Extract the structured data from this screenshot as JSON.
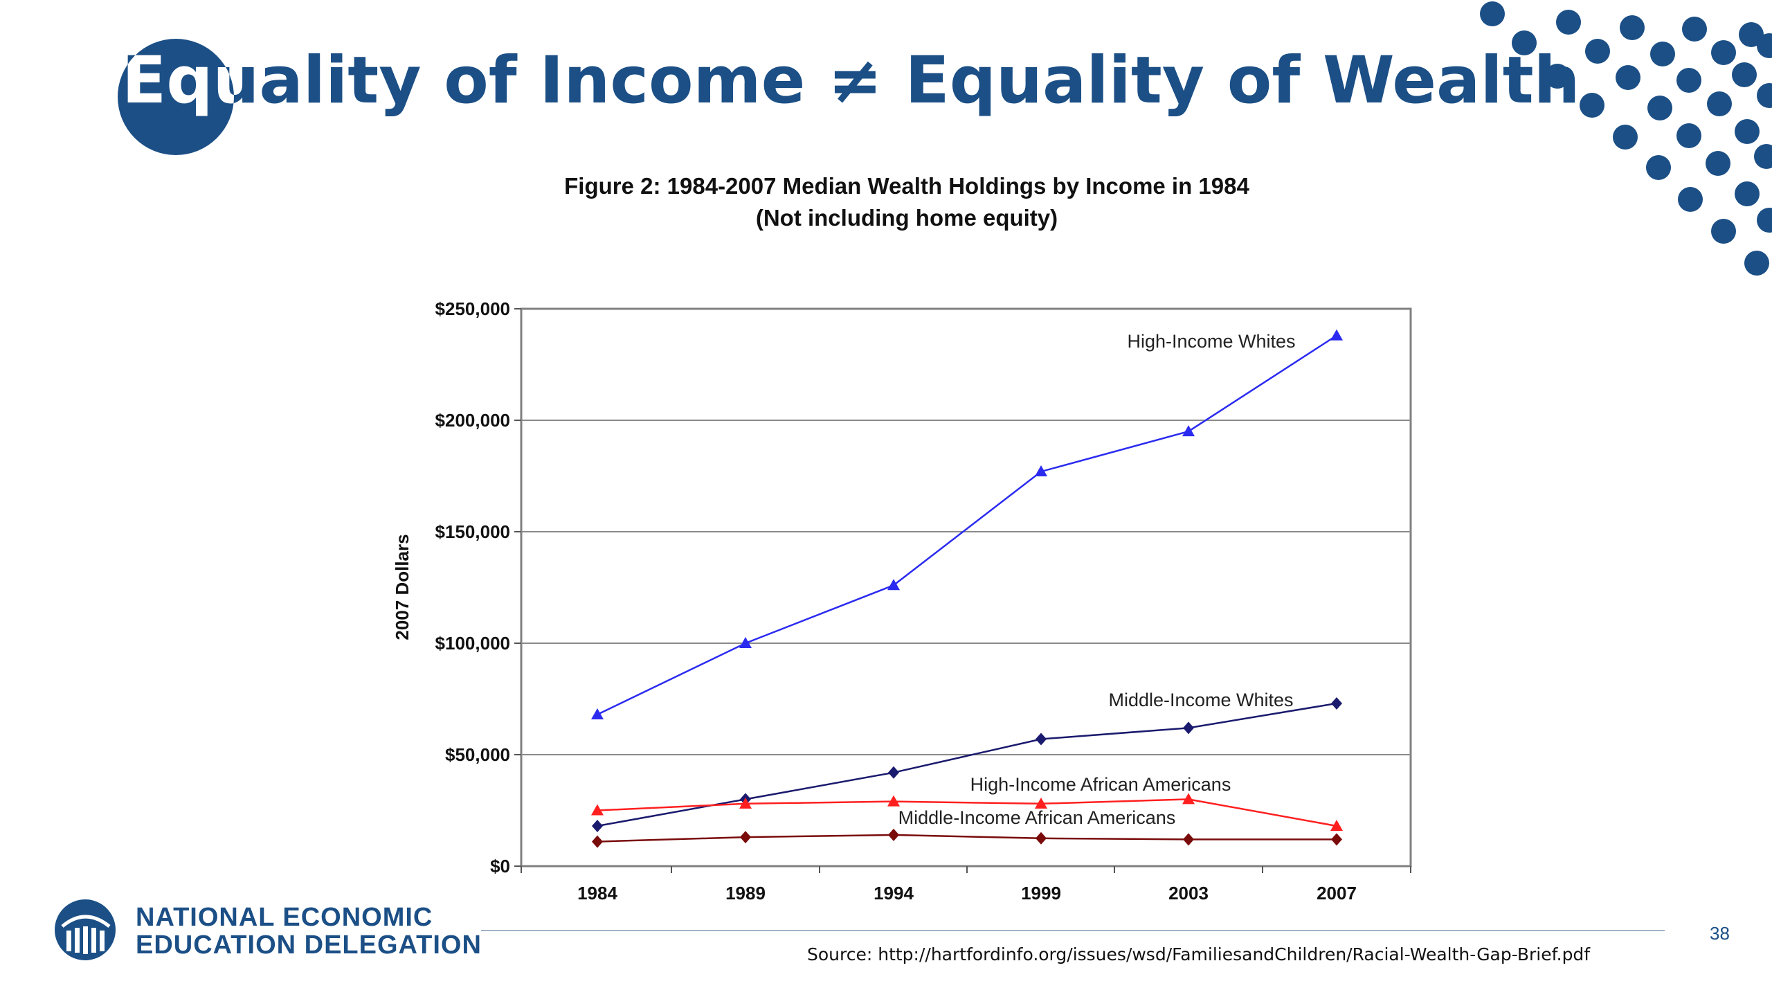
{
  "slide": {
    "title": "Equality of Income ≠ Equality of Wealth",
    "page_number": "38",
    "source": "Source: http://hartfordinfo.org/issues/wsd/FamiliesandChildren/Racial-Wealth-Gap-Brief.pdf",
    "brand_line1": "NATIONAL ECONOMIC",
    "brand_line2": "EDUCATION DELEGATION",
    "accent_color": "#1b4f86"
  },
  "chart_data": {
    "type": "line",
    "title": "Figure 2: 1984-2007 Median Wealth Holdings by Income  in 1984",
    "subtitle": "(Not including home equity)",
    "ylabel": "2007 Dollars",
    "xlabel": "",
    "categories": [
      "1984",
      "1989",
      "1994",
      "1999",
      "2003",
      "2007"
    ],
    "ylim": [
      0,
      250000
    ],
    "yticks": [
      0,
      50000,
      100000,
      150000,
      200000,
      250000
    ],
    "ytick_labels": [
      "$0",
      "$50,000",
      "$100,000",
      "$150,000",
      "$200,000",
      "$250,000"
    ],
    "grid": "horizontal",
    "series": [
      {
        "name": "High-Income Whites",
        "values": [
          68000,
          100000,
          126000,
          177000,
          195000,
          238000
        ],
        "color": "#2b2bf0",
        "marker": "triangle"
      },
      {
        "name": "Middle-Income Whites",
        "values": [
          18000,
          30000,
          42000,
          57000,
          62000,
          73000
        ],
        "color": "#1a1a6e",
        "marker": "diamond"
      },
      {
        "name": "High-Income African Americans",
        "values": [
          25000,
          28000,
          29000,
          28000,
          30000,
          18000
        ],
        "color": "#ff1f1f",
        "marker": "triangle"
      },
      {
        "name": "Middle-Income African Americans",
        "values": [
          11000,
          13000,
          14000,
          12500,
          12000,
          12000
        ],
        "color": "#7a0b0b",
        "marker": "diamond"
      }
    ]
  }
}
